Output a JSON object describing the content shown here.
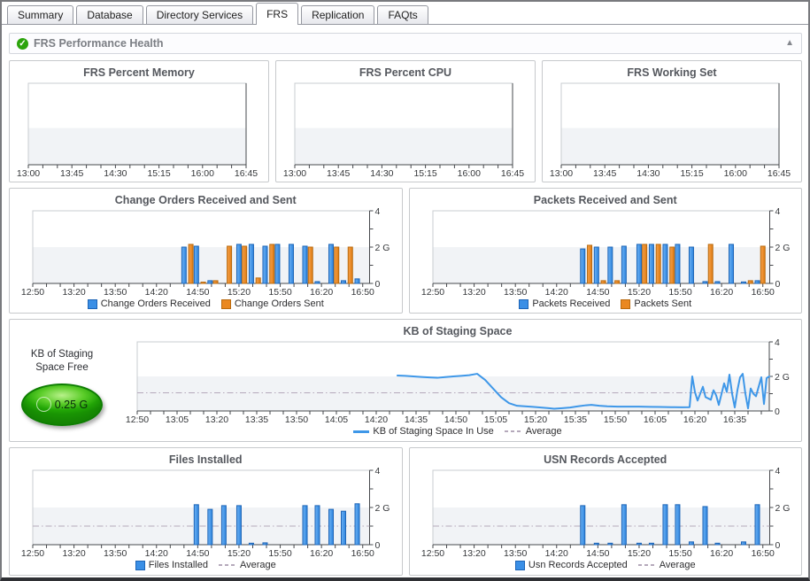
{
  "tabs": [
    {
      "label": "Summary",
      "active": false
    },
    {
      "label": "Database",
      "active": false
    },
    {
      "label": "Directory Services",
      "active": false
    },
    {
      "label": "FRS",
      "active": true
    },
    {
      "label": "Replication",
      "active": false
    },
    {
      "label": "FAQts",
      "active": false
    }
  ],
  "header": {
    "title": "FRS Performance Health",
    "status_icon": "check-circle",
    "collapse_icon": "▲",
    "check_glyph": "✓"
  },
  "gauge": {
    "label_line1": "KB of Staging",
    "label_line2": "Space Free",
    "value": "0.25 G"
  },
  "colors": {
    "blue_fill": "#3a8fe6",
    "blue_light": "#6cb0f2",
    "blue_dark": "#2e86e0",
    "blue_stroke": "#1d64b6",
    "orange_fill": "#ea8820",
    "orange_light": "#f5a04a",
    "orange_dark": "#e07c12",
    "orange_stroke": "#b96a0e",
    "line": "#3e97e8",
    "average": "#b5a9bb",
    "band": "#f1f3f6",
    "plot_border": "#c9ccd0",
    "axis": "#46484c",
    "gauge_green": "#2fa80a",
    "status_green": "#2ca40c"
  },
  "chart_data": [
    {
      "id": "frs-percent-memory",
      "type": "empty",
      "y_axis": false,
      "title": "FRS Percent Memory",
      "xlim": [
        0,
        225
      ],
      "x_major_step": 45,
      "x_minor_step": 15,
      "x_tick_labels": [
        "13:00",
        "13:45",
        "14:30",
        "15:15",
        "16:00",
        "16:45"
      ],
      "series": [],
      "legend": null
    },
    {
      "id": "frs-percent-cpu",
      "type": "empty",
      "y_axis": false,
      "title": "FRS Percent CPU",
      "xlim": [
        0,
        225
      ],
      "x_major_step": 45,
      "x_minor_step": 15,
      "x_tick_labels": [
        "13:00",
        "13:45",
        "14:30",
        "15:15",
        "16:00",
        "16:45"
      ],
      "series": [],
      "legend": null
    },
    {
      "id": "frs-working-set",
      "type": "empty",
      "y_axis": false,
      "title": "FRS Working Set",
      "xlim": [
        0,
        225
      ],
      "x_major_step": 45,
      "x_minor_step": 15,
      "x_tick_labels": [
        "13:00",
        "13:45",
        "14:30",
        "15:15",
        "16:00",
        "16:45"
      ],
      "series": [],
      "legend": null
    },
    {
      "id": "change-orders",
      "type": "bar",
      "title": "Change Orders Received and Sent",
      "x_start_time": "12:50",
      "xlim": [
        0,
        245
      ],
      "x_major_step": 30,
      "x_minor_step": 10,
      "x_tick_labels": [
        "12:50",
        "13:20",
        "13:50",
        "14:20",
        "14:50",
        "15:20",
        "15:50",
        "16:20",
        "16:50"
      ],
      "ylim": [
        0,
        4
      ],
      "y_labels": {
        "0": "0",
        "2": "2 G",
        "4": "4"
      },
      "series": [
        {
          "name": "Change Orders Received",
          "color": "blue",
          "points": [
            [
              110,
              2.0
            ],
            [
              119,
              2.05
            ],
            [
              129,
              0.15
            ],
            [
              150,
              2.15
            ],
            [
              159,
              2.15
            ],
            [
              169,
              2.05
            ],
            [
              178,
              2.15
            ],
            [
              188,
              2.15
            ],
            [
              198,
              2.05
            ],
            [
              207,
              0.1
            ],
            [
              217,
              2.15
            ],
            [
              226,
              0.15
            ],
            [
              236,
              0.25
            ]
          ]
        },
        {
          "name": "Change Orders Sent",
          "color": "orange",
          "points": [
            [
              115,
              2.15
            ],
            [
              124,
              0.07
            ],
            [
              133,
              0.15
            ],
            [
              143,
              2.05
            ],
            [
              154,
              2.05
            ],
            [
              164,
              0.3
            ],
            [
              174,
              2.15
            ],
            [
              202,
              2.0
            ],
            [
              221,
              2.0
            ],
            [
              231,
              2.0
            ]
          ]
        }
      ],
      "average": null,
      "legend": [
        {
          "label": "Change Orders Received",
          "swatch": "blue"
        },
        {
          "label": "Change Orders Sent",
          "swatch": "orange"
        }
      ]
    },
    {
      "id": "packets",
      "type": "bar",
      "title": "Packets Received and Sent",
      "x_start_time": "12:50",
      "xlim": [
        0,
        245
      ],
      "x_major_step": 30,
      "x_minor_step": 10,
      "x_tick_labels": [
        "12:50",
        "13:20",
        "13:50",
        "14:20",
        "14:50",
        "15:20",
        "15:50",
        "16:20",
        "16:50"
      ],
      "ylim": [
        0,
        4
      ],
      "y_labels": {
        "0": "0",
        "2": "2 G",
        "4": "4"
      },
      "series": [
        {
          "name": "Packets Received",
          "color": "blue",
          "points": [
            [
              109,
              1.9
            ],
            [
              119,
              2.0
            ],
            [
              129,
              2.0
            ],
            [
              139,
              2.05
            ],
            [
              150,
              2.15
            ],
            [
              159,
              2.15
            ],
            [
              169,
              2.15
            ],
            [
              178,
              2.15
            ],
            [
              188,
              2.0
            ],
            [
              198,
              0.1
            ],
            [
              207,
              0.1
            ],
            [
              217,
              2.15
            ],
            [
              226,
              0.08
            ],
            [
              236,
              0.15
            ]
          ]
        },
        {
          "name": "Packets Sent",
          "color": "orange",
          "points": [
            [
              114,
              2.1
            ],
            [
              124,
              0.15
            ],
            [
              134,
              0.15
            ],
            [
              154,
              2.15
            ],
            [
              164,
              2.15
            ],
            [
              174,
              2.0
            ],
            [
              202,
              2.15
            ],
            [
              231,
              0.15
            ],
            [
              240,
              2.05
            ]
          ]
        }
      ],
      "average": null,
      "legend": [
        {
          "label": "Packets Received",
          "swatch": "blue"
        },
        {
          "label": "Packets Sent",
          "swatch": "orange"
        }
      ]
    },
    {
      "id": "kb-staging",
      "type": "line",
      "title": "KB of Staging Space",
      "x_start_time": "12:50",
      "xlim": [
        0,
        238
      ],
      "x_major_step": 15,
      "x_minor_step": 5,
      "x_tick_labels": [
        "12:50",
        "13:05",
        "13:20",
        "13:35",
        "13:50",
        "14:05",
        "14:20",
        "14:35",
        "14:50",
        "15:05",
        "15:20",
        "15:35",
        "15:50",
        "16:05",
        "16:20",
        "16:35"
      ],
      "ylim": [
        0,
        4
      ],
      "y_labels": {
        "0": "0",
        "2": "2 G",
        "4": "4"
      },
      "series": [
        {
          "name": "KB of Staging Space In Use",
          "color": "line",
          "points": [
            [
              98,
              2.05
            ],
            [
              101,
              2.03
            ],
            [
              104,
              2.0
            ],
            [
              107,
              1.97
            ],
            [
              110,
              1.94
            ],
            [
              113,
              1.92
            ],
            [
              116,
              1.96
            ],
            [
              119,
              2.0
            ],
            [
              122,
              2.03
            ],
            [
              125,
              2.07
            ],
            [
              128,
              2.15
            ],
            [
              131,
              1.8
            ],
            [
              134,
              1.3
            ],
            [
              137,
              0.8
            ],
            [
              140,
              0.45
            ],
            [
              143,
              0.3
            ],
            [
              146,
              0.27
            ],
            [
              149,
              0.24
            ],
            [
              152,
              0.2
            ],
            [
              155,
              0.16
            ],
            [
              157,
              0.13
            ],
            [
              160,
              0.16
            ],
            [
              163,
              0.2
            ],
            [
              166,
              0.27
            ],
            [
              169,
              0.33
            ],
            [
              171,
              0.35
            ],
            [
              174,
              0.3
            ],
            [
              177,
              0.27
            ],
            [
              181,
              0.25
            ],
            [
              185,
              0.25
            ],
            [
              189,
              0.25
            ],
            [
              193,
              0.24
            ],
            [
              197,
              0.23
            ],
            [
              201,
              0.22
            ],
            [
              205,
              0.21
            ],
            [
              208,
              0.22
            ],
            [
              209,
              2.0
            ],
            [
              210,
              1.1
            ],
            [
              211,
              0.6
            ],
            [
              213,
              1.4
            ],
            [
              214,
              0.8
            ],
            [
              216,
              0.65
            ],
            [
              217,
              1.2
            ],
            [
              218,
              0.9
            ],
            [
              219,
              0.35
            ],
            [
              221,
              1.6
            ],
            [
              222,
              1.1
            ],
            [
              223,
              2.1
            ],
            [
              224,
              1.0
            ],
            [
              225,
              0.2
            ],
            [
              226,
              1.2
            ],
            [
              227,
              1.95
            ],
            [
              228,
              2.15
            ],
            [
              229,
              1.0
            ],
            [
              230,
              0.15
            ],
            [
              231,
              1.3
            ],
            [
              232,
              1.0
            ],
            [
              233,
              0.85
            ],
            [
              234,
              1.4
            ],
            [
              235,
              1.95
            ],
            [
              236,
              0.4
            ],
            [
              237,
              1.9
            ],
            [
              238,
              2.0
            ]
          ]
        }
      ],
      "average": 1.05,
      "legend": [
        {
          "label": "KB of Staging Space In Use",
          "swatch": "line"
        },
        {
          "label": "Average",
          "swatch": "dash"
        }
      ]
    },
    {
      "id": "files-installed",
      "type": "bar",
      "title": "Files Installed",
      "x_start_time": "12:50",
      "xlim": [
        0,
        245
      ],
      "x_major_step": 30,
      "x_minor_step": 10,
      "x_tick_labels": [
        "12:50",
        "13:20",
        "13:50",
        "14:20",
        "14:50",
        "15:20",
        "15:50",
        "16:20",
        "16:50"
      ],
      "ylim": [
        0,
        4
      ],
      "y_labels": {
        "0": "0",
        "2": "2 G",
        "4": "4"
      },
      "series": [
        {
          "name": "Files Installed",
          "color": "blue",
          "points": [
            [
              119,
              2.15
            ],
            [
              129,
              1.9
            ],
            [
              139,
              2.1
            ],
            [
              150,
              2.1
            ],
            [
              159,
              0.08
            ],
            [
              169,
              0.1
            ],
            [
              198,
              2.1
            ],
            [
              207,
              2.1
            ],
            [
              217,
              1.9
            ],
            [
              226,
              1.8
            ],
            [
              236,
              2.2
            ]
          ]
        }
      ],
      "average": 1.0,
      "legend": [
        {
          "label": "Files Installed",
          "swatch": "blue"
        },
        {
          "label": "Average",
          "swatch": "dash"
        }
      ]
    },
    {
      "id": "usn-records",
      "type": "bar",
      "title": "USN Records Accepted",
      "x_start_time": "12:50",
      "xlim": [
        0,
        245
      ],
      "x_major_step": 30,
      "x_minor_step": 10,
      "x_tick_labels": [
        "12:50",
        "13:20",
        "13:50",
        "14:20",
        "14:50",
        "15:20",
        "15:50",
        "16:20",
        "16:50"
      ],
      "ylim": [
        0,
        4
      ],
      "y_labels": {
        "0": "0",
        "2": "2 G",
        "4": "4"
      },
      "series": [
        {
          "name": "Usn Records Accepted",
          "color": "blue",
          "points": [
            [
              109,
              2.1
            ],
            [
              119,
              0.08
            ],
            [
              129,
              0.08
            ],
            [
              139,
              2.15
            ],
            [
              150,
              0.08
            ],
            [
              159,
              0.08
            ],
            [
              169,
              2.15
            ],
            [
              178,
              2.15
            ],
            [
              188,
              0.15
            ],
            [
              198,
              2.05
            ],
            [
              207,
              0.08
            ],
            [
              226,
              0.15
            ],
            [
              236,
              2.15
            ]
          ]
        }
      ],
      "average": 1.0,
      "legend": [
        {
          "label": "Usn Records Accepted",
          "swatch": "blue"
        },
        {
          "label": "Average",
          "swatch": "dash"
        }
      ]
    }
  ]
}
